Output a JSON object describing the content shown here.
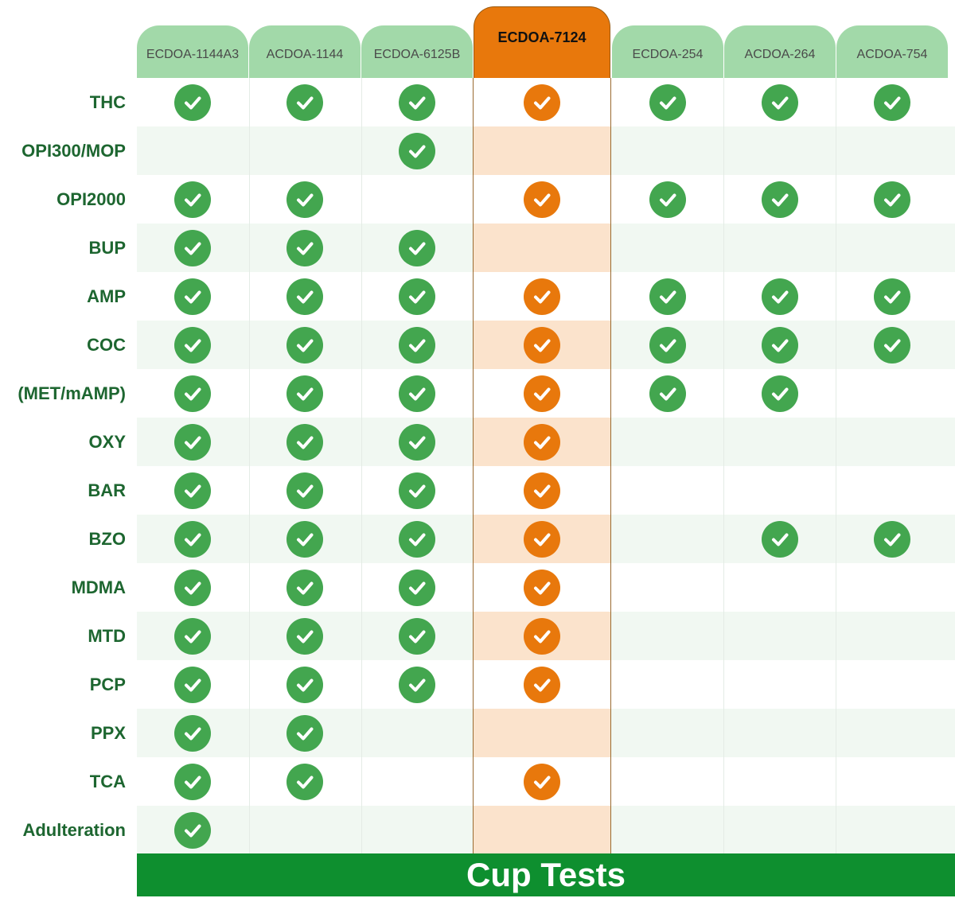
{
  "colors": {
    "green_check": "#43a64f",
    "orange_check": "#e8780c",
    "header_green": "#a2d9a9",
    "header_orange": "#e8780c",
    "footer_green": "#0e8f2f",
    "label_green": "#1d6630"
  },
  "highlight_column": 3,
  "columns": [
    "ECDOA-1144A3",
    "ACDOA-1144",
    "ECDOA-6125B",
    "ECDOA-7124",
    "ECDOA-254",
    "ACDOA-264",
    "ACDOA-754"
  ],
  "rows": [
    {
      "label": "THC",
      "checks": [
        true,
        true,
        true,
        true,
        true,
        true,
        true
      ]
    },
    {
      "label": "OPI300/MOP",
      "checks": [
        false,
        false,
        true,
        false,
        false,
        false,
        false
      ]
    },
    {
      "label": "OPI2000",
      "checks": [
        true,
        true,
        false,
        true,
        true,
        true,
        true
      ]
    },
    {
      "label": "BUP",
      "checks": [
        true,
        true,
        true,
        false,
        false,
        false,
        false
      ]
    },
    {
      "label": "AMP",
      "checks": [
        true,
        true,
        true,
        true,
        true,
        true,
        true
      ]
    },
    {
      "label": "COC",
      "checks": [
        true,
        true,
        true,
        true,
        true,
        true,
        true
      ]
    },
    {
      "label": "(MET/mAMP)",
      "checks": [
        true,
        true,
        true,
        true,
        true,
        true,
        false
      ]
    },
    {
      "label": "OXY",
      "checks": [
        true,
        true,
        true,
        true,
        false,
        false,
        false
      ]
    },
    {
      "label": "BAR",
      "checks": [
        true,
        true,
        true,
        true,
        false,
        false,
        false
      ]
    },
    {
      "label": "BZO",
      "checks": [
        true,
        true,
        true,
        true,
        false,
        true,
        true
      ]
    },
    {
      "label": "MDMA",
      "checks": [
        true,
        true,
        true,
        true,
        false,
        false,
        false
      ]
    },
    {
      "label": "MTD",
      "checks": [
        true,
        true,
        true,
        true,
        false,
        false,
        false
      ]
    },
    {
      "label": "PCP",
      "checks": [
        true,
        true,
        true,
        true,
        false,
        false,
        false
      ]
    },
    {
      "label": "PPX",
      "checks": [
        true,
        true,
        false,
        false,
        false,
        false,
        false
      ]
    },
    {
      "label": "TCA",
      "checks": [
        true,
        true,
        false,
        true,
        false,
        false,
        false
      ]
    },
    {
      "label": "Adulteration",
      "checks": [
        true,
        false,
        false,
        false,
        false,
        false,
        false
      ]
    }
  ],
  "footer": {
    "title": "Cup Tests"
  }
}
